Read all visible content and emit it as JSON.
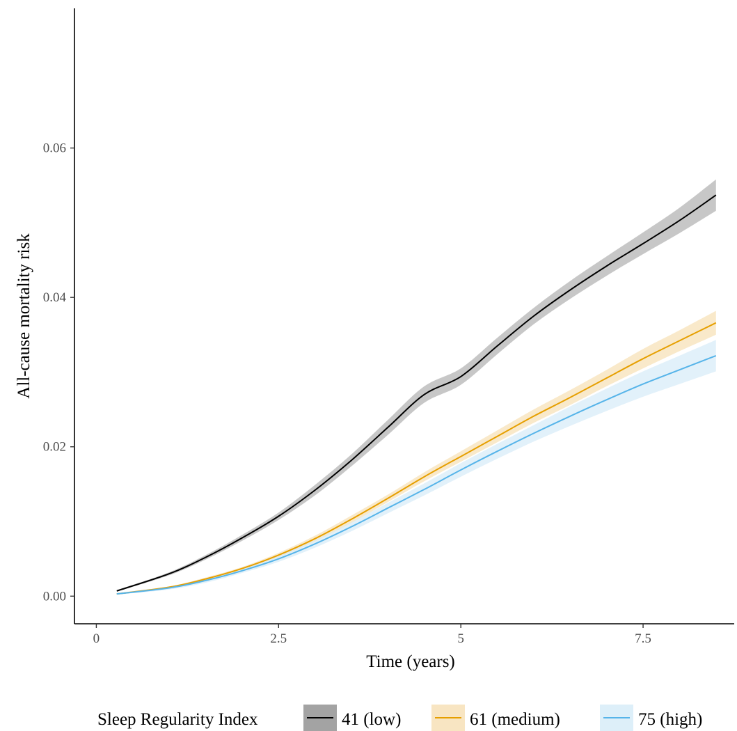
{
  "chart_data": {
    "type": "line",
    "title": "",
    "xlabel": "Time (years)",
    "ylabel": "All-cause mortality risk",
    "xlim": [
      -0.3,
      8.75
    ],
    "ylim": [
      -0.0037,
      0.0787
    ],
    "x_ticks": [
      0,
      2.5,
      5,
      7.5
    ],
    "x_tick_labels": [
      "0",
      "2.5",
      "5",
      "7.5"
    ],
    "y_ticks": [
      0,
      0.02,
      0.04,
      0.06
    ],
    "y_tick_labels": [
      "0.00",
      "0.02",
      "0.04",
      "0.06"
    ],
    "grid": false,
    "legend": {
      "title": "Sleep Regularity Index",
      "position": "bottom"
    },
    "series": [
      {
        "name": "41 (low)",
        "color": "#000000",
        "fill": "#999999",
        "x": [
          0.28,
          1.0,
          1.5,
          2.0,
          2.5,
          3.0,
          3.5,
          4.0,
          4.5,
          5.0,
          5.5,
          6.0,
          6.5,
          7.0,
          7.5,
          8.0,
          8.5
        ],
        "y": [
          0.0007,
          0.003,
          0.0052,
          0.0078,
          0.0107,
          0.0142,
          0.0182,
          0.0226,
          0.027,
          0.0294,
          0.0335,
          0.0375,
          0.041,
          0.0442,
          0.0472,
          0.0503,
          0.0537
        ],
        "lower": [
          0.0006,
          0.0028,
          0.0049,
          0.0074,
          0.0102,
          0.0135,
          0.0174,
          0.0216,
          0.0259,
          0.0283,
          0.0324,
          0.0364,
          0.0398,
          0.0429,
          0.0458,
          0.0486,
          0.0516
        ],
        "upper": [
          0.0008,
          0.0032,
          0.0055,
          0.0082,
          0.0112,
          0.0149,
          0.019,
          0.0236,
          0.0281,
          0.0305,
          0.0346,
          0.0386,
          0.0422,
          0.0455,
          0.0487,
          0.052,
          0.0558
        ]
      },
      {
        "name": "61 (medium)",
        "color": "#E69F00",
        "fill": "#F6DFB3",
        "x": [
          0.28,
          1.0,
          1.5,
          2.0,
          2.5,
          3.0,
          3.5,
          4.0,
          4.5,
          5.0,
          5.5,
          6.0,
          6.5,
          7.0,
          7.5,
          8.0,
          8.5
        ],
        "y": [
          0.0003,
          0.0012,
          0.0023,
          0.0037,
          0.0055,
          0.0077,
          0.0103,
          0.0131,
          0.016,
          0.0187,
          0.0214,
          0.0241,
          0.0266,
          0.0292,
          0.0318,
          0.0342,
          0.0366
        ],
        "lower": [
          0.0002,
          0.0011,
          0.0021,
          0.0035,
          0.0052,
          0.0073,
          0.0098,
          0.0126,
          0.0154,
          0.018,
          0.0206,
          0.0232,
          0.0256,
          0.0281,
          0.0305,
          0.0328,
          0.035
        ],
        "upper": [
          0.0004,
          0.0013,
          0.0025,
          0.0039,
          0.0058,
          0.0081,
          0.0108,
          0.0136,
          0.0166,
          0.0194,
          0.0222,
          0.025,
          0.0276,
          0.0303,
          0.0331,
          0.0356,
          0.0382
        ]
      },
      {
        "name": "75 (high)",
        "color": "#56B4E9",
        "fill": "#D5EBF8",
        "x": [
          0.28,
          1.0,
          1.5,
          2.0,
          2.5,
          3.0,
          3.5,
          4.0,
          4.5,
          5.0,
          5.5,
          6.0,
          6.5,
          7.0,
          7.5,
          8.0,
          8.5
        ],
        "y": [
          0.0003,
          0.0011,
          0.0021,
          0.0034,
          0.005,
          0.007,
          0.0093,
          0.0118,
          0.0143,
          0.0169,
          0.0194,
          0.0218,
          0.0241,
          0.0263,
          0.0284,
          0.0303,
          0.0322
        ],
        "lower": [
          0.0002,
          0.0009,
          0.0018,
          0.0031,
          0.0046,
          0.0065,
          0.0087,
          0.0111,
          0.0135,
          0.016,
          0.0184,
          0.0207,
          0.0228,
          0.0248,
          0.0267,
          0.0284,
          0.0301
        ],
        "upper": [
          0.0004,
          0.0013,
          0.0024,
          0.0037,
          0.0054,
          0.0075,
          0.0099,
          0.0125,
          0.0151,
          0.0178,
          0.0204,
          0.0229,
          0.0254,
          0.0278,
          0.0301,
          0.0322,
          0.0343
        ]
      }
    ]
  }
}
